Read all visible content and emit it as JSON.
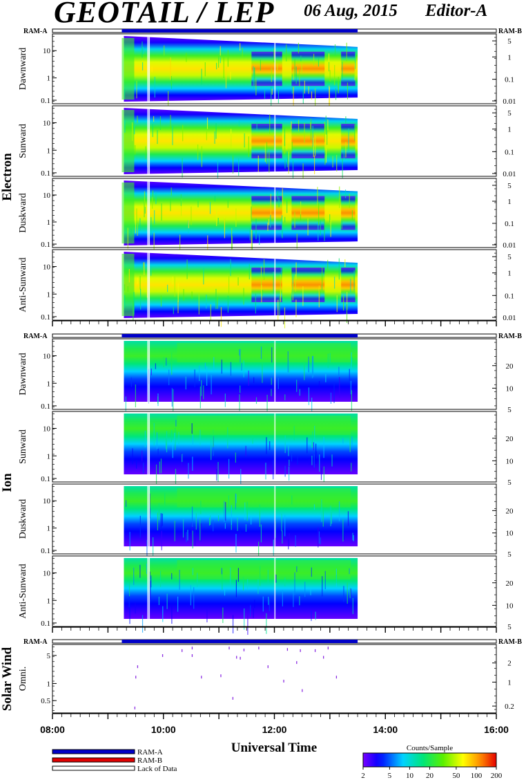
{
  "header": {
    "title": "GEOTAIL / LEP",
    "date": "06 Aug, 2015",
    "editor": "Editor-A"
  },
  "ram_labels": {
    "left": "RAM-A",
    "right": "RAM-B"
  },
  "groups": [
    {
      "name": "Electron",
      "panels": [
        "Dawnward",
        "Sunward",
        "Duskward",
        "Anti-Sunward"
      ],
      "left_ticks": [
        "0.1",
        "1",
        "10"
      ],
      "right_ticks": [
        "0.01",
        "0.1",
        "1",
        "5"
      ]
    },
    {
      "name": "Ion",
      "panels": [
        "Dawnward",
        "Sunward",
        "Duskward",
        "Anti-Sunward"
      ],
      "left_ticks": [
        "0.1",
        "1",
        "10"
      ],
      "right_ticks": [
        "5",
        "10",
        "20"
      ]
    },
    {
      "name": "Solar Wind",
      "panels": [
        "Omni."
      ],
      "left_ticks": [
        "0.5",
        "1",
        "5"
      ],
      "right_ticks": [
        "0.2",
        "1",
        "2"
      ]
    }
  ],
  "x_axis": {
    "label": "Universal Time",
    "ticks": [
      "08:00",
      "10:00",
      "12:00",
      "14:00",
      "16:00"
    ]
  },
  "legend": {
    "items": [
      {
        "label": "RAM-A",
        "color": "#0000c8"
      },
      {
        "label": "RAM-B",
        "color": "#e00000"
      },
      {
        "label": "Lack of Data",
        "color": "#ffffff"
      }
    ]
  },
  "colorbar": {
    "title": "Counts/Sample",
    "ticks": [
      "2",
      "5",
      "10",
      "20",
      "50",
      "100",
      "200"
    ]
  },
  "chart_data": {
    "type": "heatmap",
    "x_range": [
      "08:00",
      "16:00"
    ],
    "data_interval": [
      "09:15",
      "13:30"
    ],
    "ram_a_interval": [
      "09:15",
      "13:30"
    ],
    "scale": "log",
    "colorbar_range": [
      2,
      200
    ],
    "panels": [
      {
        "species": "Electron",
        "direction": "Dawnward",
        "ylim": [
          0.1,
          30
        ],
        "peak_times": [
          "11:30",
          "12:45",
          "13:25"
        ]
      },
      {
        "species": "Electron",
        "direction": "Sunward",
        "ylim": [
          0.1,
          30
        ],
        "peak_times": [
          "12:10"
        ]
      },
      {
        "species": "Electron",
        "direction": "Duskward",
        "ylim": [
          0.1,
          30
        ],
        "peak_times": [
          "11:30",
          "13:25"
        ]
      },
      {
        "species": "Electron",
        "direction": "Anti-Sunward",
        "ylim": [
          0.1,
          30
        ],
        "peak_times": [
          "11:00"
        ]
      },
      {
        "species": "Ion",
        "direction": "Dawnward",
        "ylim": [
          0.1,
          30
        ]
      },
      {
        "species": "Ion",
        "direction": "Sunward",
        "ylim": [
          0.1,
          30
        ],
        "peak_times": [
          "09:30"
        ]
      },
      {
        "species": "Ion",
        "direction": "Duskward",
        "ylim": [
          0.1,
          30
        ],
        "peak_times": [
          "13:15"
        ]
      },
      {
        "species": "Ion",
        "direction": "Anti-Sunward",
        "ylim": [
          0.1,
          30
        ]
      }
    ],
    "solar_wind_points": [
      [
        "09:29",
        0.2
      ],
      [
        "09:30",
        1.2
      ],
      [
        "09:32",
        2.2
      ],
      [
        "09:59",
        4.2
      ],
      [
        "10:20",
        5.6
      ],
      [
        "10:31",
        6.5
      ],
      [
        "10:31",
        4.2
      ],
      [
        "10:41",
        1.2
      ],
      [
        "11:02",
        1.3
      ],
      [
        "11:11",
        6.5
      ],
      [
        "11:15",
        0.35
      ],
      [
        "11:19",
        3.8
      ],
      [
        "11:23",
        3.6
      ],
      [
        "11:27",
        5.8
      ],
      [
        "11:43",
        6.5
      ],
      [
        "11:53",
        2.2
      ],
      [
        "12:10",
        0.95
      ],
      [
        "12:14",
        6.0
      ],
      [
        "12:24",
        2.8
      ],
      [
        "12:28",
        5.6
      ],
      [
        "12:30",
        0.55
      ],
      [
        "12:44",
        5.6
      ],
      [
        "12:53",
        3.8
      ],
      [
        "12:58",
        6.5
      ],
      [
        "13:07",
        1.2
      ]
    ]
  }
}
